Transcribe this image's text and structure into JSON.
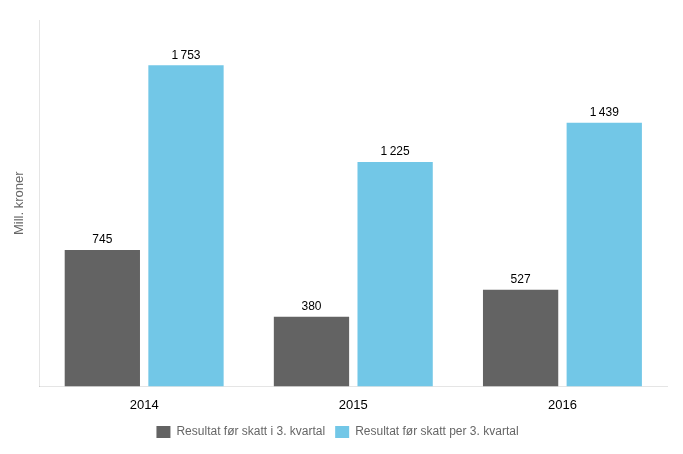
{
  "chart_data": {
    "type": "bar",
    "categories": [
      "2014",
      "2015",
      "2016"
    ],
    "ylabel": "Mill. kroner",
    "ylim": [
      0,
      2000
    ],
    "series": [
      {
        "name": "Resultat før skatt i 3. kvartal",
        "color": "#636363",
        "values": [
          745,
          380,
          527
        ]
      },
      {
        "name": "Resultat før skatt per 3. kvartal",
        "color": "#72C7E7",
        "values": [
          1753,
          1225,
          1439
        ],
        "value_labels": [
          "1 753",
          "1 225",
          "1 439"
        ]
      }
    ],
    "data_labels": true,
    "tick_labels": "x",
    "grid": false,
    "legend": "bottom"
  }
}
